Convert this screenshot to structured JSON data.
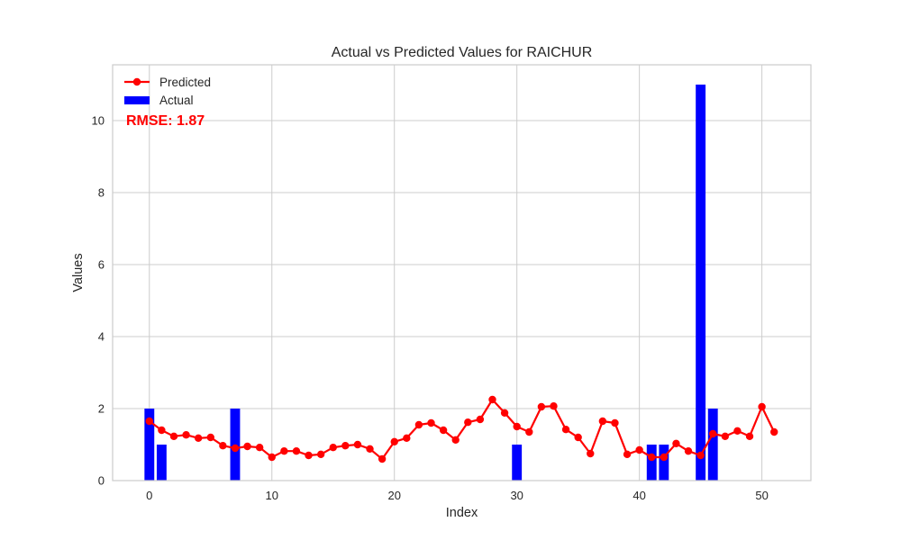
{
  "chart_data": {
    "type": "bar",
    "title": "Actual vs Predicted Values for RAICHUR",
    "xlabel": "Index",
    "ylabel": "Values",
    "xlim": [
      -3,
      54
    ],
    "ylim": [
      0,
      11.55
    ],
    "xticks": [
      0,
      10,
      20,
      30,
      40,
      50
    ],
    "yticks": [
      0,
      2,
      4,
      6,
      8,
      10
    ],
    "grid": true,
    "legend_position": "top-left",
    "annotation": {
      "text": "RMSE: 1.87",
      "color": "#ff0000"
    },
    "series": [
      {
        "name": "Predicted",
        "type": "line",
        "color": "#ff0000",
        "marker": "circle",
        "x": [
          0,
          1,
          2,
          3,
          4,
          5,
          6,
          7,
          8,
          9,
          10,
          11,
          12,
          13,
          14,
          15,
          16,
          17,
          18,
          19,
          20,
          21,
          22,
          23,
          24,
          25,
          26,
          27,
          28,
          29,
          30,
          31,
          32,
          33,
          34,
          35,
          36,
          37,
          38,
          39,
          40,
          41,
          42,
          43,
          44,
          45,
          46,
          47,
          48,
          49,
          50,
          51
        ],
        "values": [
          1.65,
          1.4,
          1.23,
          1.27,
          1.18,
          1.2,
          0.97,
          0.9,
          0.95,
          0.92,
          0.65,
          0.82,
          0.82,
          0.7,
          0.73,
          0.92,
          0.97,
          1.0,
          0.88,
          0.6,
          1.08,
          1.18,
          1.55,
          1.6,
          1.4,
          1.13,
          1.62,
          1.7,
          2.25,
          1.88,
          1.5,
          1.35,
          2.05,
          2.07,
          1.42,
          1.2,
          0.75,
          1.65,
          1.6,
          0.73,
          0.85,
          0.65,
          0.65,
          1.03,
          0.82,
          0.7,
          1.3,
          1.23,
          1.38,
          1.23,
          2.05,
          1.35
        ]
      },
      {
        "name": "Actual",
        "type": "bar",
        "color": "#0000ff",
        "x": [
          0,
          1,
          2,
          3,
          4,
          5,
          6,
          7,
          8,
          9,
          10,
          11,
          12,
          13,
          14,
          15,
          16,
          17,
          18,
          19,
          20,
          21,
          22,
          23,
          24,
          25,
          26,
          27,
          28,
          29,
          30,
          31,
          32,
          33,
          34,
          35,
          36,
          37,
          38,
          39,
          40,
          41,
          42,
          43,
          44,
          45,
          46,
          47,
          48,
          49,
          50,
          51
        ],
        "values": [
          2,
          1,
          0,
          0,
          0,
          0,
          0,
          2,
          0,
          0,
          0,
          0,
          0,
          0,
          0,
          0,
          0,
          0,
          0,
          0,
          0,
          0,
          0,
          0,
          0,
          0,
          0,
          0,
          0,
          0,
          1,
          0,
          0,
          0,
          0,
          0,
          0,
          0,
          0,
          0,
          0,
          1,
          1,
          0,
          0,
          11,
          2,
          0,
          0,
          0,
          0,
          0
        ]
      }
    ]
  }
}
